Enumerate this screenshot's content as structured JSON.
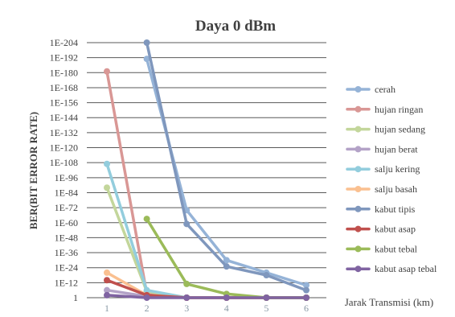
{
  "chart_data": {
    "type": "line",
    "title": "Daya 0 dBm",
    "xlabel": "Jarak Transmisi (km)",
    "ylabel": "BER(BIT ERROR RATE)",
    "x": [
      1,
      2,
      3,
      4,
      5,
      6
    ],
    "x_ticks": [
      "1",
      "2",
      "3",
      "4",
      "5",
      "6"
    ],
    "y_scale": "log",
    "y_ticks": [
      "1E-204",
      "1E-192",
      "1E-180",
      "1E-168",
      "1E-156",
      "1E-144",
      "1E-132",
      "1E-120",
      "1E-108",
      "1E-96",
      "1E-84",
      "1E-72",
      "1E-60",
      "1E-48",
      "1E-36",
      "1E-24",
      "1E-12",
      "1"
    ],
    "y_tick_exponents": [
      -204,
      -192,
      -180,
      -168,
      -156,
      -144,
      -132,
      -120,
      -108,
      -96,
      -84,
      -72,
      -60,
      -48,
      -36,
      -24,
      -12,
      0
    ],
    "ylim_exponent": [
      -204,
      0
    ],
    "grid": true,
    "legend_position": "right",
    "series": [
      {
        "name": "cerah",
        "color": "#95b3d7",
        "y_exponent": [
          null,
          -191,
          -70,
          -30,
          -20,
          -10
        ]
      },
      {
        "name": "hujan ringan",
        "color": "#d99795",
        "y_exponent": [
          -181,
          -3,
          0,
          0,
          0,
          0
        ]
      },
      {
        "name": "hujan sedang",
        "color": "#c3d69b",
        "y_exponent": [
          -88,
          -5,
          0,
          0,
          0,
          0
        ]
      },
      {
        "name": "hujan berat",
        "color": "#b3a2c7",
        "y_exponent": [
          -6,
          -1,
          0,
          0,
          0,
          0
        ]
      },
      {
        "name": "salju kering",
        "color": "#93cddd",
        "y_exponent": [
          -107,
          -6,
          0,
          0,
          0,
          0
        ]
      },
      {
        "name": "salju basah",
        "color": "#fac090",
        "y_exponent": [
          -20,
          -2,
          0,
          0,
          0,
          0
        ]
      },
      {
        "name": "kabut tipis",
        "color": "#7f97bd",
        "y_exponent": [
          null,
          -204,
          -59,
          -25,
          -18,
          -6
        ]
      },
      {
        "name": "kabut asap",
        "color": "#c0504d",
        "y_exponent": [
          -14,
          -2,
          0,
          0,
          0,
          0
        ]
      },
      {
        "name": "kabut tebal",
        "color": "#9bbb59",
        "y_exponent": [
          null,
          -63,
          -11,
          -3,
          0,
          0
        ]
      },
      {
        "name": "kabut asap tebal",
        "color": "#8064a2",
        "y_exponent": [
          -2,
          0,
          0,
          0,
          0,
          0
        ]
      }
    ]
  }
}
